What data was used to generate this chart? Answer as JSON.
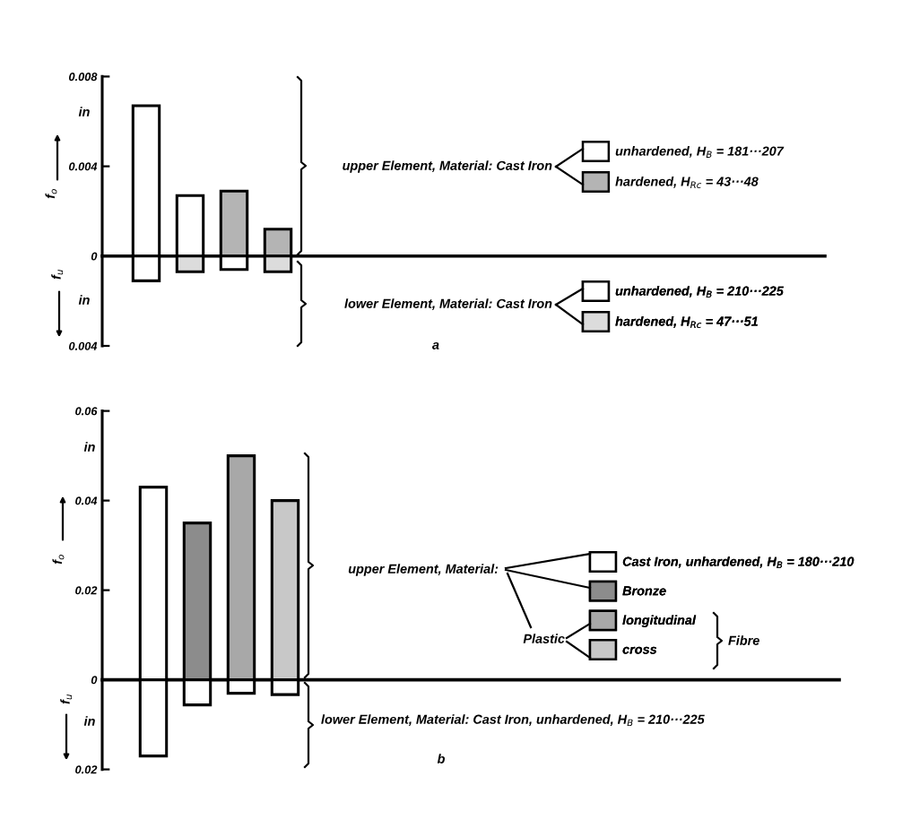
{
  "chart_data": [
    {
      "type": "bar",
      "stacked": true,
      "categories": [
        null,
        null,
        null,
        null
      ],
      "tick_labels": "y",
      "ylabel": "f$_{o}$",
      "ylim": [
        -0.004,
        0.008
      ],
      "yticks": [
        {
          "value": -0.004,
          "label": "0.004"
        },
        0,
        0.004,
        0.008
      ],
      "series": [
        {
          "name": "unhardened, H$_{B}$ = 181···207",
          "color": "#ffffff",
          "values": [
            0.0067,
            0.0027,
            null,
            null
          ]
        },
        {
          "name": "hardened, H$_{Rc}$ = 43···48",
          "color": "#b4b4b4",
          "values": [
            null,
            null,
            0.0029,
            0.0012
          ]
        },
        {
          "name": "unhardened, H$_{B}$ = 210···225",
          "color": "#ffffff",
          "values": [
            -0.0011,
            null,
            -0.0006,
            null
          ]
        },
        {
          "name": "hardened, H$_{Rc}$ = 47···51",
          "color": "#dcdcdc",
          "values": [
            null,
            -0.0007,
            null,
            -0.0007
          ]
        }
      ],
      "legend": "right",
      "annotations": [
        "in",
        "in",
        "f$_{u}$",
        "upper Element, Material: Cast Iron",
        "lower Element, Material: Cast Iron",
        "a"
      ]
    },
    {
      "type": "bar",
      "stacked": true,
      "categories": [
        null,
        null,
        null,
        null
      ],
      "tick_labels": "y",
      "ylabel": "f$_{o}$",
      "ylim": [
        -0.02,
        0.06
      ],
      "yticks": [
        {
          "value": -0.02,
          "label": "0.02"
        },
        0,
        0.02,
        0.04,
        0.06
      ],
      "series": [
        {
          "name": "Cast Iron, unhardened, H$_{B}$ = 180···210",
          "color": "#ffffff",
          "values": [
            0.043,
            null,
            null,
            null
          ]
        },
        {
          "name": "Bronze",
          "color": "#8c8c8c",
          "values": [
            null,
            0.035,
            null,
            null
          ]
        },
        {
          "name": "longitudinal",
          "color": "#a8a8a8",
          "values": [
            null,
            null,
            0.05,
            null
          ]
        },
        {
          "name": "cross",
          "color": "#c8c8c8",
          "values": [
            null,
            null,
            null,
            0.04
          ]
        },
        {
          "color": "#ffffff",
          "values": [
            -0.017,
            -0.0056,
            -0.003,
            -0.0033
          ]
        }
      ],
      "legend": "right",
      "annotations": [
        "in",
        "in",
        "f$_{u}$",
        "upper Element, Material:",
        "Plastic",
        "Fibre",
        "lower Element, Material: Cast Iron, unhardened, H$_{B}$ = 210···225",
        "b"
      ]
    }
  ]
}
